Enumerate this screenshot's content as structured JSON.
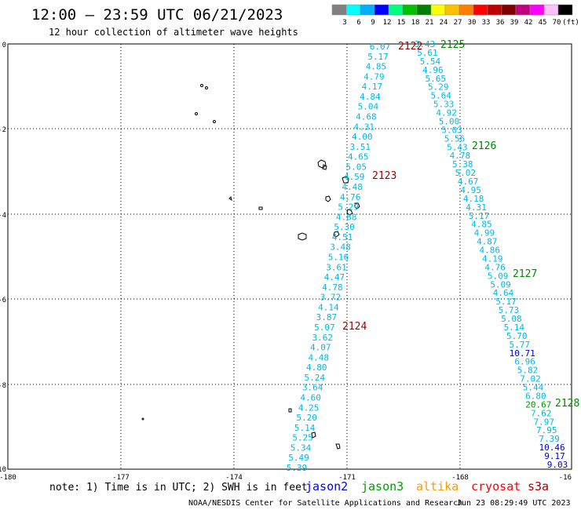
{
  "title": "12:00 — 23:59 UTC 06/21/2023",
  "subtitle": "12 hour collection of altimeter wave heights",
  "legend": {
    "colors": [
      "#808080",
      "#00ffff",
      "#00b0ff",
      "#0000ff",
      "#00ff80",
      "#00c000",
      "#008000",
      "#ffff00",
      "#ffc000",
      "#ff8000",
      "#ff0000",
      "#c00000",
      "#800000",
      "#c00080",
      "#ff00ff",
      "#ffc0ff",
      "#000000"
    ],
    "labels": [
      "3",
      "6",
      "9",
      "12",
      "15",
      "18",
      "21",
      "24",
      "27",
      "30",
      "33",
      "36",
      "39",
      "42",
      "45",
      "70",
      "(ft)"
    ]
  },
  "axes": {
    "x_ticks": [
      "-180",
      "-177",
      "-174",
      "-171",
      "-168",
      "-16"
    ],
    "y_ticks": [
      "0",
      "-2",
      "-4",
      "-6",
      "-8",
      "-10"
    ]
  },
  "passes": [
    {
      "label": "2122",
      "color": "#990000"
    },
    {
      "label": "2125",
      "color": "#008800"
    },
    {
      "label": "2126",
      "color": "#008800"
    },
    {
      "label": "2123",
      "color": "#990000"
    },
    {
      "label": "2127",
      "color": "#008800"
    },
    {
      "label": "2124",
      "color": "#990000"
    },
    {
      "label": "2128",
      "color": "#008800"
    }
  ],
  "tracks": {
    "track_2122": [
      "6.07",
      "5.17",
      "4.85",
      "4.79",
      "4.17",
      "4.84",
      "5.04",
      "4.68",
      "4.31",
      "4.00",
      "3.51",
      "4.65",
      "5.05",
      "4.59",
      "4.48",
      "4.76",
      "5.29",
      "4.88",
      "5.30",
      "4.51",
      "3.48",
      "5.16",
      "3.61",
      "4.47",
      "4.78",
      "3.72",
      "4.14",
      "3.87",
      "5.07",
      "3.62",
      "4.07",
      "4.48",
      "4.80",
      "5.24",
      "3.64",
      "4.60",
      "4.25",
      "5.20",
      "5.14",
      "5.25",
      "5.34",
      "5.49",
      "5.39"
    ],
    "track_2125": [
      "3.43",
      "5.61",
      "5.54",
      "4.96",
      "5.65",
      "5.29",
      "5.64",
      "5.33",
      "4.92",
      "5.00",
      "5.03",
      "5.56",
      "5.43",
      "4.78",
      "5.38",
      "5.02",
      "4.67",
      "4.95",
      "4.18",
      "4.31",
      "5.17",
      "4.85",
      "4.99",
      "4.87",
      "4.86",
      "4.19",
      "4.76",
      "5.09",
      "5.09",
      "4.64",
      "5.17",
      "5.73",
      "5.08",
      "5.14",
      "5.70",
      "5.77",
      "10.71",
      "6.96",
      "5.82",
      "7.02",
      "5.44",
      "6.80",
      "20.67",
      "7.62",
      "7.97",
      "7.95",
      "7.39",
      "10.46",
      "9.17",
      "9.03"
    ]
  },
  "satellites": [
    {
      "name": "jason2",
      "color": "#0000ff"
    },
    {
      "name": "jason3",
      "color": "#00a000"
    },
    {
      "name": "altika",
      "color": "#ff9900"
    },
    {
      "name": "cryosat",
      "color": "#ff0000"
    },
    {
      "name": "s3a",
      "color": "#aa0000"
    }
  ],
  "note": "note: 1) Time is in UTC; 2) SWH is in feet",
  "credit": "NOAA/NESDIS Center for Satellite Applications and Research",
  "timestamp": "Jun 23 08:29:49 UTC 2023"
}
